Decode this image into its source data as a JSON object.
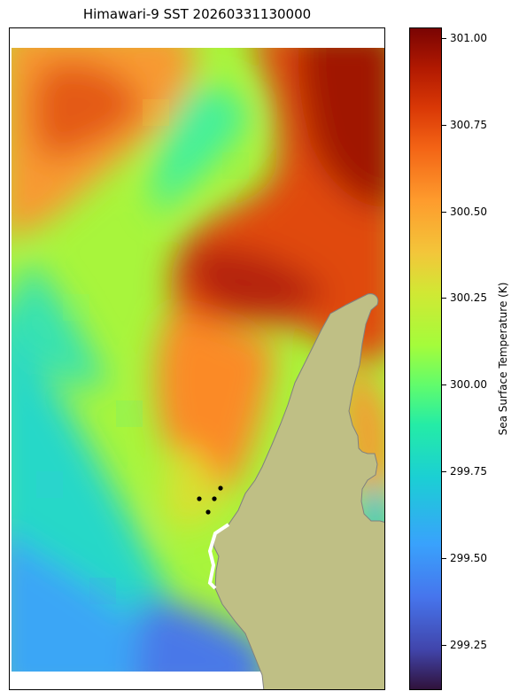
{
  "title": "Himawari-9 SST 20260331130000",
  "colorbar": {
    "label": "Sea Surface Temperature (K)",
    "min": 299.12,
    "max": 301.03,
    "ticks": [
      "299.25",
      "299.50",
      "299.75",
      "300.00",
      "300.25",
      "300.50",
      "300.75",
      "301.00"
    ],
    "tick_values": [
      299.25,
      299.5,
      299.75,
      300.0,
      300.25,
      300.5,
      300.75,
      301.0
    ]
  },
  "map": {
    "field": "sea-surface-temperature",
    "colormap": "turbo",
    "land_color": "#bfbf85",
    "coastline_color": "#808080",
    "no_data_color": "#ffffff",
    "marker_color": "#000000",
    "marker_count": 4
  }
}
